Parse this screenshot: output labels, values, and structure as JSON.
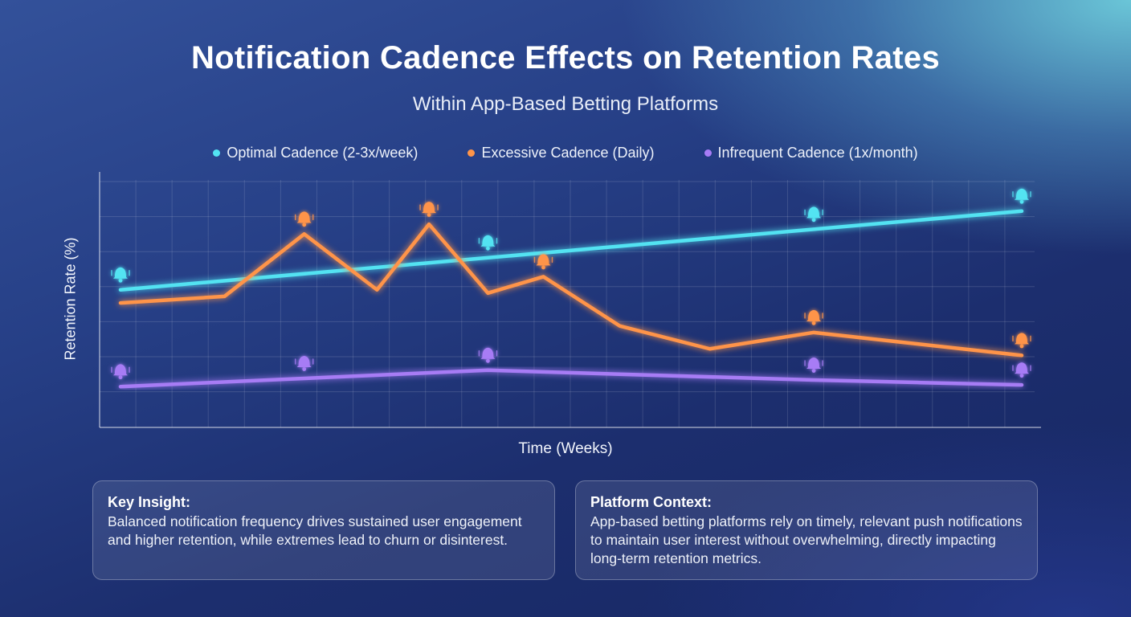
{
  "title": "Notification Cadence Effects on Retention Rates",
  "subtitle": "Within App-Based Betting Platforms",
  "chart_data": {
    "type": "line",
    "title": "Notification Cadence Effects on Retention Rates",
    "subtitle": "Within App-Based Betting Platforms",
    "xlabel": "Time (Weeks)",
    "ylabel": "Retention Rate (%)",
    "x_tick_labels": [],
    "y_tick_labels": [],
    "xlim": [
      0,
      26
    ],
    "ylim": [
      0,
      7.2
    ],
    "grid": true,
    "legend_position": "top-center",
    "markers": "bell icons",
    "series": [
      {
        "name": "Optimal Cadence (2-3x/week)",
        "color": "#53e3f2",
        "x": [
          0,
          26
        ],
        "y": [
          3.9,
          6.3
        ],
        "marker_x": [
          0,
          10.6,
          20.0,
          26
        ]
      },
      {
        "name": "Excessive Cadence (Daily)",
        "color": "#ff9448",
        "x": [
          0,
          3.0,
          5.3,
          7.4,
          8.9,
          10.6,
          12.2,
          14.4,
          17.0,
          20.0,
          26
        ],
        "y": [
          3.5,
          3.7,
          5.6,
          3.9,
          5.9,
          3.8,
          4.3,
          2.8,
          2.1,
          2.6,
          1.9
        ],
        "marker_x": [
          5.3,
          8.9,
          12.2,
          20.0,
          26
        ]
      },
      {
        "name": "Infrequent Cadence (1x/month)",
        "color": "#a77cf5",
        "x": [
          0,
          5.3,
          10.6,
          20.0,
          26
        ],
        "y": [
          0.95,
          1.2,
          1.45,
          1.15,
          1.0
        ],
        "marker_x": [
          0,
          5.3,
          10.6,
          20.0,
          26
        ]
      }
    ]
  },
  "cards": [
    {
      "title": "Key Insight:",
      "text": "Balanced notification frequency drives sustained user engagement and higher retention, while extremes lead to churn or disinterest."
    },
    {
      "title": "Platform Context:",
      "text": "App-based betting platforms rely on timely, relevant push notifications to maintain user interest without overwhelming, directly impacting long-term retention metrics."
    }
  ]
}
